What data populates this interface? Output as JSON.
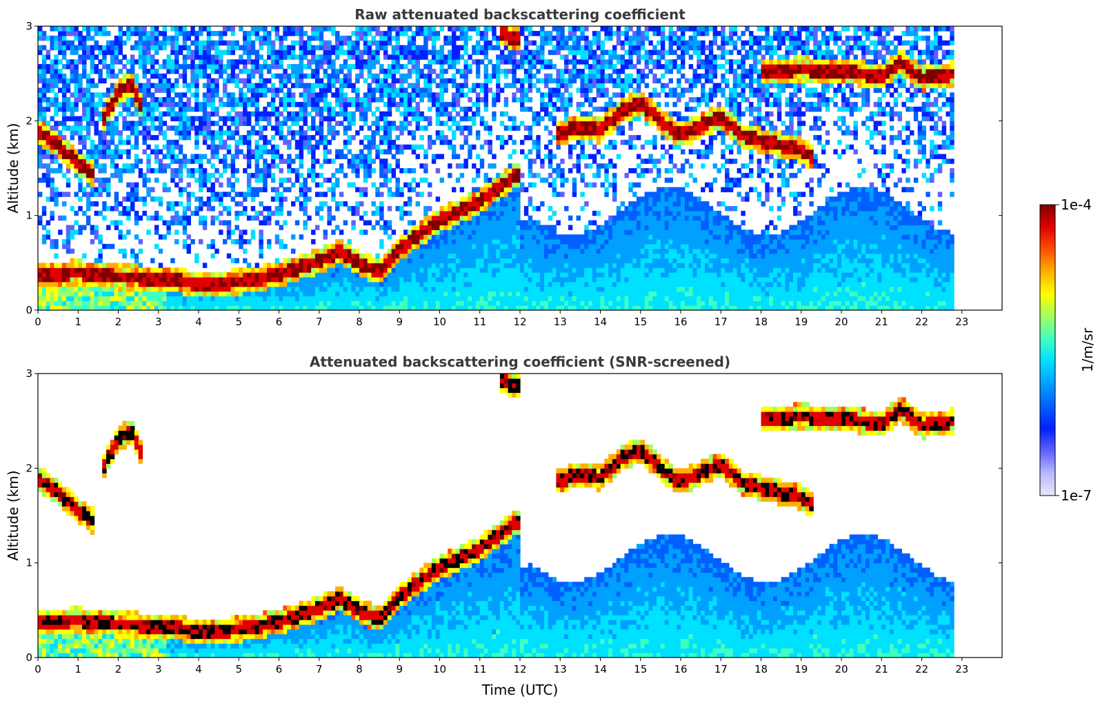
{
  "chart_data": [
    {
      "type": "heatmap",
      "title": "Raw attenuated backscattering coefficient",
      "ylabel": "Altitude (km)",
      "xlabel": "",
      "xlim": [
        0,
        24
      ],
      "ylim": [
        0,
        3
      ],
      "xticks": [
        "0",
        "1",
        "2",
        "3",
        "4",
        "5",
        "6",
        "7",
        "8",
        "9",
        "10",
        "11",
        "12",
        "13",
        "14",
        "15",
        "16",
        "17",
        "18",
        "19",
        "20",
        "21",
        "22",
        "23"
      ],
      "yticks": [
        "0",
        "1",
        "2",
        "3"
      ],
      "data_end_hour": 22.8,
      "noise_level": "high",
      "layers": [
        {
          "kind": "boundary-layer",
          "points": [
            [
              0,
              0.38
            ],
            [
              1,
              0.4
            ],
            [
              2,
              0.35
            ],
            [
              3,
              0.34
            ],
            [
              4,
              0.28
            ],
            [
              5,
              0.3
            ],
            [
              6,
              0.38
            ],
            [
              7,
              0.52
            ],
            [
              7.5,
              0.62
            ],
            [
              8,
              0.5
            ],
            [
              8.5,
              0.4
            ],
            [
              9,
              0.65
            ],
            [
              10,
              0.95
            ],
            [
              11,
              1.15
            ],
            [
              12,
              1.45
            ]
          ]
        },
        {
          "kind": "cloud",
          "points": [
            [
              0,
              1.9
            ],
            [
              0.5,
              1.75
            ],
            [
              1,
              1.55
            ],
            [
              1.35,
              1.45
            ]
          ]
        },
        {
          "kind": "cloud",
          "points": [
            [
              1.6,
              2.0
            ],
            [
              2.0,
              2.3
            ],
            [
              2.3,
              2.4
            ],
            [
              2.6,
              2.15
            ]
          ]
        },
        {
          "kind": "cloud",
          "points": [
            [
              11.5,
              2.93
            ],
            [
              12,
              2.85
            ]
          ]
        },
        {
          "kind": "cloud",
          "points": [
            [
              12.9,
              1.85
            ],
            [
              13.5,
              1.95
            ],
            [
              14,
              1.9
            ],
            [
              14.5,
              2.1
            ],
            [
              15,
              2.2
            ],
            [
              15.5,
              2.0
            ],
            [
              16,
              1.85
            ],
            [
              16.5,
              1.95
            ],
            [
              17,
              2.05
            ],
            [
              17.5,
              1.85
            ],
            [
              18,
              1.8
            ],
            [
              18.5,
              1.75
            ],
            [
              19,
              1.7
            ],
            [
              19.3,
              1.6
            ]
          ]
        },
        {
          "kind": "cloud",
          "points": [
            [
              18,
              2.52
            ],
            [
              19,
              2.55
            ],
            [
              20,
              2.52
            ],
            [
              21,
              2.48
            ],
            [
              21.5,
              2.62
            ],
            [
              22,
              2.45
            ],
            [
              22.8,
              2.5
            ]
          ]
        }
      ]
    },
    {
      "type": "heatmap",
      "title": "Attenuated backscattering coefficient (SNR-screened)",
      "ylabel": "Altitude (km)",
      "xlabel": "Time (UTC)",
      "xlim": [
        0,
        24
      ],
      "ylim": [
        0,
        3
      ],
      "xticks": [
        "0",
        "1",
        "2",
        "3",
        "4",
        "5",
        "6",
        "7",
        "8",
        "9",
        "10",
        "11",
        "12",
        "13",
        "14",
        "15",
        "16",
        "17",
        "18",
        "19",
        "20",
        "21",
        "22",
        "23"
      ],
      "yticks": [
        "0",
        "1",
        "2",
        "3"
      ],
      "data_end_hour": 22.8,
      "noise_level": "screened",
      "layers": [
        {
          "kind": "boundary-layer",
          "points": [
            [
              0,
              0.38
            ],
            [
              1,
              0.4
            ],
            [
              2,
              0.35
            ],
            [
              3,
              0.34
            ],
            [
              4,
              0.28
            ],
            [
              5,
              0.3
            ],
            [
              6,
              0.38
            ],
            [
              7,
              0.52
            ],
            [
              7.5,
              0.62
            ],
            [
              8,
              0.5
            ],
            [
              8.5,
              0.4
            ],
            [
              9,
              0.65
            ],
            [
              10,
              0.95
            ],
            [
              11,
              1.15
            ],
            [
              12,
              1.45
            ]
          ]
        },
        {
          "kind": "cloud",
          "points": [
            [
              0,
              1.9
            ],
            [
              0.5,
              1.75
            ],
            [
              1,
              1.55
            ],
            [
              1.35,
              1.45
            ]
          ]
        },
        {
          "kind": "cloud",
          "points": [
            [
              1.6,
              2.0
            ],
            [
              2.0,
              2.3
            ],
            [
              2.3,
              2.4
            ],
            [
              2.6,
              2.15
            ]
          ]
        },
        {
          "kind": "cloud",
          "points": [
            [
              11.5,
              2.93
            ],
            [
              12,
              2.85
            ]
          ]
        },
        {
          "kind": "cloud",
          "points": [
            [
              12.9,
              1.85
            ],
            [
              13.5,
              1.95
            ],
            [
              14,
              1.9
            ],
            [
              14.5,
              2.1
            ],
            [
              15,
              2.2
            ],
            [
              15.5,
              2.0
            ],
            [
              16,
              1.85
            ],
            [
              16.5,
              1.95
            ],
            [
              17,
              2.05
            ],
            [
              17.5,
              1.85
            ],
            [
              18,
              1.8
            ],
            [
              18.5,
              1.75
            ],
            [
              19,
              1.7
            ],
            [
              19.3,
              1.6
            ]
          ]
        },
        {
          "kind": "cloud",
          "points": [
            [
              18,
              2.52
            ],
            [
              19,
              2.55
            ],
            [
              20,
              2.52
            ],
            [
              21,
              2.48
            ],
            [
              21.5,
              2.62
            ],
            [
              22,
              2.45
            ],
            [
              22.8,
              2.5
            ]
          ]
        }
      ]
    }
  ],
  "colorbar": {
    "label": "1/m/sr",
    "max_label": "1e-4",
    "min_label": "1e-7",
    "scale": "log",
    "colormap": [
      "#e8e8f8",
      "#b8b8ff",
      "#6060ff",
      "#0020ff",
      "#0060ff",
      "#00a0ff",
      "#00e0ff",
      "#40ffc0",
      "#a0ff60",
      "#ffff00",
      "#ffb000",
      "#ff5000",
      "#e00000",
      "#800000"
    ]
  }
}
